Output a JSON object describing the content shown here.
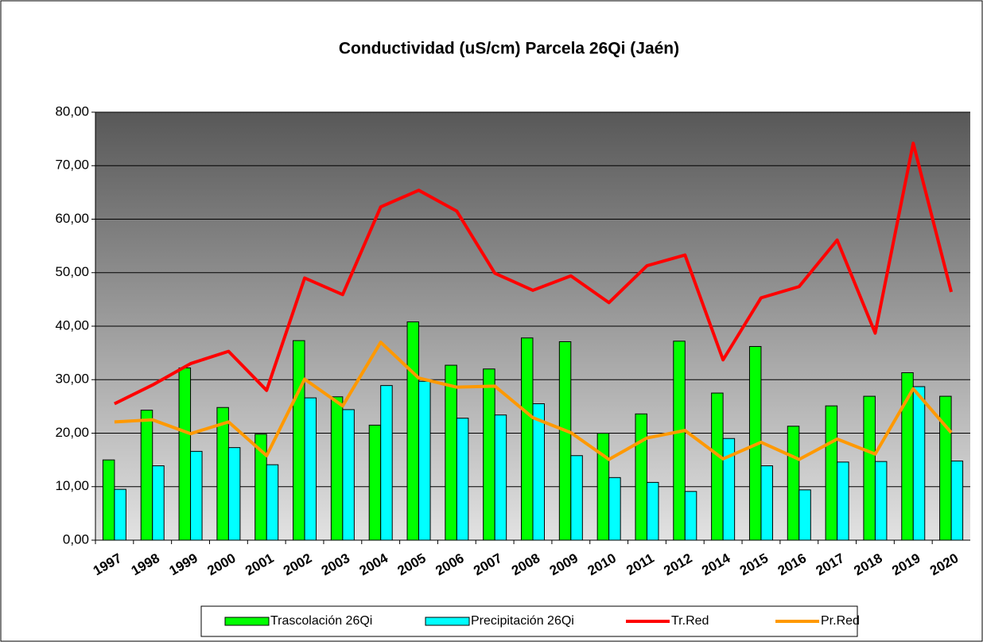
{
  "chart_data": {
    "type": "bar",
    "title": "Conductividad (uS/cm) Parcela 26Qi (Jaén)",
    "categories": [
      "1997",
      "1998",
      "1999",
      "2000",
      "2001",
      "2002",
      "2003",
      "2004",
      "2005",
      "2006",
      "2007",
      "2008",
      "2009",
      "2010",
      "2011",
      "2012",
      "2014",
      "2015",
      "2016",
      "2017",
      "2018",
      "2019",
      "2020"
    ],
    "series": [
      {
        "name": "Trascolación  26Qi",
        "type": "bar",
        "color": "#00ff00",
        "values": [
          15.0,
          24.3,
          32.2,
          24.8,
          19.8,
          37.3,
          26.8,
          21.5,
          40.8,
          32.7,
          32.0,
          37.8,
          37.1,
          20.0,
          23.6,
          37.2,
          27.5,
          36.2,
          21.3,
          25.1,
          26.9,
          31.3,
          26.9
        ]
      },
      {
        "name": "Precipitación 26Qi",
        "type": "bar",
        "color": "#00ffff",
        "values": [
          9.5,
          13.9,
          16.6,
          17.3,
          14.1,
          26.6,
          24.4,
          28.9,
          29.7,
          22.8,
          23.4,
          25.5,
          15.8,
          11.7,
          10.8,
          9.1,
          19.0,
          13.9,
          9.4,
          14.6,
          14.7,
          28.7,
          14.8
        ]
      },
      {
        "name": "Tr.Red",
        "type": "line",
        "color": "#ff0000",
        "values": [
          25.5,
          29.0,
          33.0,
          35.3,
          28.0,
          49.0,
          45.9,
          62.3,
          65.4,
          61.5,
          49.9,
          46.7,
          49.4,
          44.4,
          51.3,
          53.3,
          33.7,
          45.3,
          47.4,
          56.1,
          38.7,
          74.2,
          46.4
        ]
      },
      {
        "name": "Pr.Red",
        "type": "line",
        "color": "#ff9900",
        "values": [
          22.1,
          22.5,
          19.9,
          22.1,
          15.8,
          30.1,
          25.1,
          37.0,
          30.3,
          28.6,
          28.8,
          22.9,
          20.1,
          15.1,
          19.1,
          20.5,
          15.2,
          18.3,
          15.1,
          18.9,
          16.1,
          28.3,
          20.1
        ]
      }
    ],
    "ylim": [
      0,
      80
    ],
    "yticks": [
      {
        "value": 0,
        "label": "0,00"
      },
      {
        "value": 10,
        "label": "10,00"
      },
      {
        "value": 20,
        "label": "20,00"
      },
      {
        "value": 30,
        "label": "30,00"
      },
      {
        "value": 40,
        "label": "40,00"
      },
      {
        "value": 50,
        "label": "50,00"
      },
      {
        "value": 60,
        "label": "60,00"
      },
      {
        "value": 70,
        "label": "70,00"
      },
      {
        "value": 80,
        "label": "80,00"
      }
    ],
    "grid": true,
    "legend": "bottom"
  }
}
